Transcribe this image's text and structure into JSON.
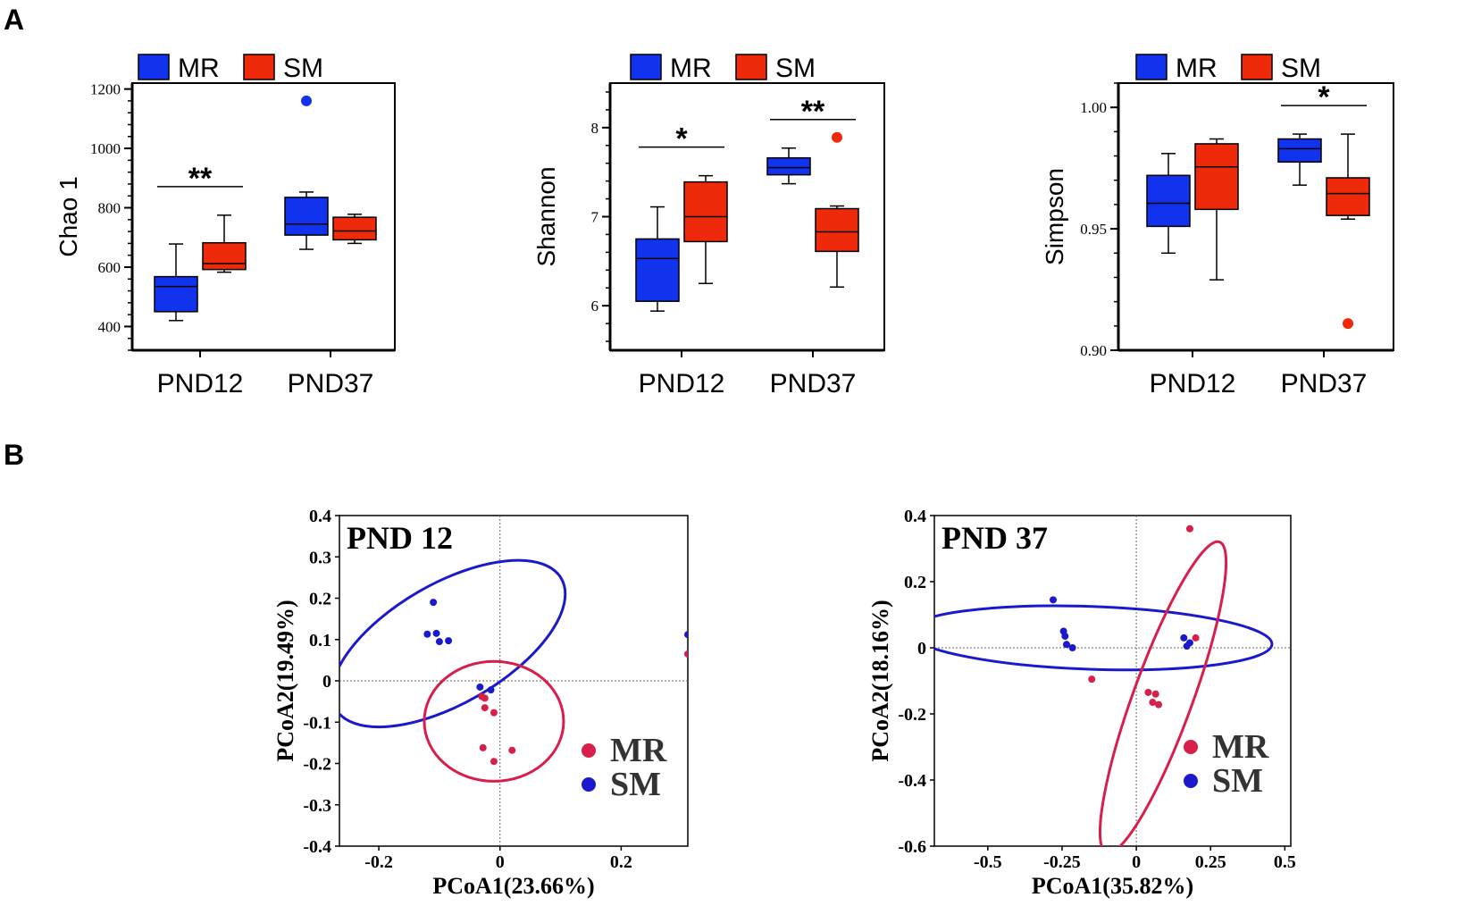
{
  "panels": {
    "a": "A",
    "b": "B"
  },
  "colors": {
    "MR_box": "#1133ee",
    "SM_box": "#ee2a0a",
    "MR_pcoa": "#d81e4a",
    "SM_pcoa": "#1a1acc"
  },
  "chart_data": [
    {
      "type": "box",
      "id": "chao1",
      "ylabel": "Chao 1",
      "ylim": [
        320,
        1220
      ],
      "yticks": [
        400,
        600,
        800,
        1000,
        1200
      ],
      "ytick_labels": [
        "400",
        "600",
        "800",
        "1000",
        "1200"
      ],
      "categories": [
        "PND12",
        "PND37"
      ],
      "legend": [
        "MR",
        "SM"
      ],
      "series": [
        {
          "name": "MR",
          "boxes": [
            {
              "min": 420,
              "q1": 450,
              "median": 535,
              "q3": 568,
              "max": 678,
              "outliers": []
            },
            {
              "min": 660,
              "q1": 708,
              "median": 745,
              "q3": 835,
              "max": 853,
              "outliers": [
                1160
              ]
            }
          ]
        },
        {
          "name": "SM",
          "boxes": [
            {
              "min": 583,
              "q1": 592,
              "median": 612,
              "q3": 682,
              "max": 775,
              "outliers": []
            },
            {
              "min": 680,
              "q1": 692,
              "median": 722,
              "q3": 768,
              "max": 778,
              "outliers": []
            }
          ]
        }
      ],
      "significance": [
        {
          "category": "PND12",
          "label": "**"
        }
      ]
    },
    {
      "type": "box",
      "id": "shannon",
      "ylabel": "Shannon",
      "ylim": [
        5.5,
        8.5
      ],
      "yticks": [
        6,
        7,
        8
      ],
      "ytick_labels": [
        "6",
        "7",
        "8"
      ],
      "categories": [
        "PND12",
        "PND37"
      ],
      "legend": [
        "MR",
        "SM"
      ],
      "series": [
        {
          "name": "MR",
          "boxes": [
            {
              "min": 5.94,
              "q1": 6.05,
              "median": 6.53,
              "q3": 6.75,
              "max": 7.11,
              "outliers": []
            },
            {
              "min": 7.37,
              "q1": 7.47,
              "median": 7.55,
              "q3": 7.66,
              "max": 7.77,
              "outliers": []
            }
          ]
        },
        {
          "name": "SM",
          "boxes": [
            {
              "min": 6.25,
              "q1": 6.72,
              "median": 7.0,
              "q3": 7.39,
              "max": 7.46,
              "outliers": []
            },
            {
              "min": 6.21,
              "q1": 6.61,
              "median": 6.83,
              "q3": 7.09,
              "max": 7.12,
              "outliers": [
                7.89
              ]
            }
          ]
        }
      ],
      "significance": [
        {
          "category": "PND12",
          "label": "*"
        },
        {
          "category": "PND37",
          "label": "**"
        }
      ]
    },
    {
      "type": "box",
      "id": "simpson",
      "ylabel": "Simpson",
      "ylim": [
        0.9,
        1.01
      ],
      "yticks": [
        0.9,
        0.95,
        1.0
      ],
      "ytick_labels": [
        "0.90",
        "0.95",
        "1.00"
      ],
      "categories": [
        "PND12",
        "PND37"
      ],
      "legend": [
        "MR",
        "SM"
      ],
      "series": [
        {
          "name": "MR",
          "boxes": [
            {
              "min": 0.94,
              "q1": 0.951,
              "median": 0.9605,
              "q3": 0.972,
              "max": 0.981,
              "outliers": []
            },
            {
              "min": 0.968,
              "q1": 0.9775,
              "median": 0.983,
              "q3": 0.987,
              "max": 0.989,
              "outliers": []
            }
          ]
        },
        {
          "name": "SM",
          "boxes": [
            {
              "min": 0.929,
              "q1": 0.958,
              "median": 0.9755,
              "q3": 0.985,
              "max": 0.987,
              "outliers": []
            },
            {
              "min": 0.954,
              "q1": 0.9555,
              "median": 0.9645,
              "q3": 0.971,
              "max": 0.989,
              "outliers": [
                0.911
              ]
            }
          ]
        }
      ],
      "significance": [
        {
          "category": "PND37",
          "label": "*"
        }
      ]
    },
    {
      "type": "scatter",
      "id": "pcoa12",
      "title": "PND 12",
      "xlabel": "PCoA1(23.66%)",
      "ylabel": "PCoA2(19.49%)",
      "xlim": [
        -0.265,
        0.31
      ],
      "ylim": [
        -0.4,
        0.4
      ],
      "xticks": [
        -0.2,
        0,
        0.2
      ],
      "xtick_labels": [
        "-0.2",
        "0",
        "0.2"
      ],
      "yticks": [
        0.4,
        0.3,
        0.2,
        0.1,
        0,
        -0.1,
        -0.2,
        -0.3,
        -0.4
      ],
      "ytick_labels": [
        "0.4",
        "0.3",
        "0.2",
        "0.1",
        "0",
        "-0.1",
        "-0.2",
        "-0.3",
        "-0.4"
      ],
      "legend": [
        "MR",
        "SM"
      ],
      "series": [
        {
          "name": "MR",
          "points": [
            [
              -0.03,
              -0.038
            ],
            [
              -0.025,
              -0.042
            ],
            [
              -0.025,
              -0.065
            ],
            [
              -0.01,
              -0.077
            ],
            [
              -0.028,
              -0.162
            ],
            [
              0.02,
              -0.168
            ],
            [
              -0.01,
              -0.195
            ],
            [
              0.31,
              0.065
            ]
          ]
        },
        {
          "name": "SM",
          "points": [
            [
              -0.11,
              0.19
            ],
            [
              -0.12,
              0.113
            ],
            [
              -0.105,
              0.115
            ],
            [
              -0.1,
              0.095
            ],
            [
              -0.085,
              0.097
            ],
            [
              -0.033,
              -0.015
            ],
            [
              -0.015,
              -0.022
            ],
            [
              0.31,
              0.112
            ]
          ]
        }
      ],
      "ellipses": [
        {
          "series": "SM",
          "cx": -0.085,
          "cy": 0.09,
          "rx": 0.215,
          "ry": 0.145,
          "angle_deg": -30
        },
        {
          "series": "MR",
          "cx": -0.01,
          "cy": -0.098,
          "rx": 0.115,
          "ry": 0.145,
          "angle_deg": 0
        }
      ]
    },
    {
      "type": "scatter",
      "id": "pcoa37",
      "title": "PND 37",
      "xlabel": "PCoA1(35.82%)",
      "ylabel": "PCoA2(18.16%)",
      "xlim": [
        -0.68,
        0.52
      ],
      "ylim": [
        -0.6,
        0.4
      ],
      "xticks": [
        -0.5,
        -0.25,
        0,
        0.25,
        0.5
      ],
      "xtick_labels": [
        "-0.5",
        "-0.25",
        "0",
        "0.25",
        "0.5"
      ],
      "yticks": [
        0.4,
        0.2,
        0,
        -0.2,
        -0.4,
        -0.6
      ],
      "ytick_labels": [
        "0.4",
        "0.2",
        "0",
        "-0.2",
        "-0.4",
        "-0.6"
      ],
      "legend": [
        "MR",
        "SM"
      ],
      "series": [
        {
          "name": "MR",
          "points": [
            [
              0.18,
              0.36
            ],
            [
              0.2,
              0.03
            ],
            [
              -0.15,
              -0.095
            ],
            [
              0.04,
              -0.135
            ],
            [
              0.065,
              -0.14
            ],
            [
              0.055,
              -0.165
            ],
            [
              0.075,
              -0.172
            ]
          ]
        },
        {
          "name": "SM",
          "points": [
            [
              -0.28,
              0.145
            ],
            [
              -0.245,
              0.05
            ],
            [
              -0.24,
              0.035
            ],
            [
              -0.235,
              0.01
            ],
            [
              -0.215,
              0.0
            ],
            [
              0.16,
              0.03
            ],
            [
              0.18,
              0.015
            ],
            [
              0.17,
              0.005
            ]
          ]
        }
      ],
      "ellipses": [
        {
          "series": "SM",
          "cx": -0.155,
          "cy": 0.03,
          "rx": 0.612,
          "ry": 0.095,
          "angle_deg": 2
        },
        {
          "series": "MR",
          "cx": 0.09,
          "cy": -0.15,
          "rx": 0.1,
          "ry": 0.5,
          "angle_deg": 20
        }
      ]
    }
  ]
}
